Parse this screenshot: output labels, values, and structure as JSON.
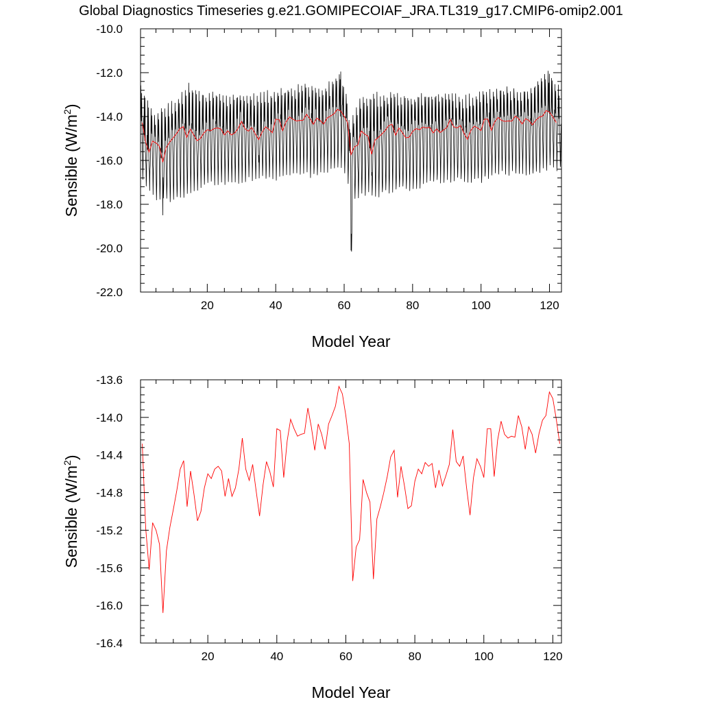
{
  "title": "Global Diagnostics Timeseries g.e21.GOMIPECOIAF_JRA.TL319_g17.CMIP6-omip2.001",
  "colors": {
    "monthly": "#000000",
    "annual": "#ff0000"
  },
  "chart_data": [
    {
      "type": "line",
      "xlabel": "Model Year",
      "ylabel_main": "Sensible (W/m",
      "ylabel_sup": "2",
      "ylabel_tail": ")",
      "xlim": [
        0.5,
        123.5
      ],
      "ylim": [
        -22.0,
        -10.0
      ],
      "xticks": [
        20,
        40,
        60,
        80,
        100,
        120
      ],
      "yticks": [
        -22.0,
        -20.0,
        -18.0,
        -16.0,
        -14.0,
        -12.0,
        -10.0
      ],
      "ytick_labels": [
        "-22.0",
        "-20.0",
        "-18.0",
        "-16.0",
        "-14.0",
        "-12.0",
        "-10.0"
      ],
      "monthly_envelope": {
        "years": [
          1,
          5,
          10,
          15,
          20,
          25,
          30,
          35,
          40,
          45,
          50,
          55,
          59,
          61,
          62,
          63,
          65,
          70,
          75,
          80,
          85,
          90,
          95,
          100,
          105,
          110,
          115,
          120,
          123
        ],
        "max": [
          -12.6,
          -13.9,
          -13.4,
          -12.6,
          -13.0,
          -13.0,
          -13.0,
          -13.0,
          -12.9,
          -12.7,
          -12.6,
          -12.7,
          -12.0,
          -13.0,
          -14.5,
          -14.0,
          -13.3,
          -13.0,
          -13.0,
          -13.1,
          -13.0,
          -13.0,
          -13.1,
          -13.0,
          -12.7,
          -12.8,
          -12.7,
          -12.0,
          -12.6
        ],
        "min": [
          -16.9,
          -17.7,
          -17.8,
          -17.5,
          -17.0,
          -17.1,
          -16.9,
          -16.8,
          -16.8,
          -16.5,
          -16.7,
          -16.5,
          -16.4,
          -17.0,
          -20.1,
          -17.8,
          -17.5,
          -17.6,
          -17.3,
          -17.3,
          -17.0,
          -16.9,
          -16.9,
          -16.9,
          -16.6,
          -16.6,
          -16.7,
          -16.3,
          -16.4
        ],
        "spikes": [
          {
            "year": 62,
            "value": -20.1
          },
          {
            "year": 7,
            "value": -18.5
          },
          {
            "year": 59,
            "value": -11.95
          },
          {
            "year": 120,
            "value": -12.05
          }
        ]
      },
      "annual": "series"
    },
    {
      "type": "line",
      "xlabel": "Model Year",
      "ylabel_main": "Sensible (W/m",
      "ylabel_sup": "2",
      "ylabel_tail": ")",
      "xlim": [
        0.5,
        122.5
      ],
      "ylim": [
        -16.4,
        -13.6
      ],
      "xticks": [
        20,
        40,
        60,
        80,
        100,
        120
      ],
      "yticks": [
        -16.4,
        -16.0,
        -15.6,
        -15.2,
        -14.8,
        -14.4,
        -14.0,
        -13.6
      ],
      "ytick_labels": [
        "-16.4",
        "-16.0",
        "-15.6",
        "-15.2",
        "-14.8",
        "-14.4",
        "-14.0",
        "-13.6"
      ],
      "annual": "series"
    }
  ],
  "annual_series": {
    "x": [
      1,
      2,
      3,
      4,
      5,
      6,
      7,
      8,
      9,
      10,
      11,
      12,
      13,
      14,
      15,
      16,
      17,
      18,
      19,
      20,
      21,
      22,
      23,
      24,
      25,
      26,
      27,
      28,
      29,
      30,
      31,
      32,
      33,
      34,
      35,
      36,
      37,
      38,
      39,
      40,
      41,
      42,
      43,
      44,
      45,
      46,
      47,
      48,
      49,
      50,
      51,
      52,
      53,
      54,
      55,
      56,
      57,
      58,
      59,
      60,
      61,
      62,
      63,
      64,
      65,
      66,
      67,
      68,
      69,
      70,
      71,
      72,
      73,
      74,
      75,
      76,
      77,
      78,
      79,
      80,
      81,
      82,
      83,
      84,
      85,
      86,
      87,
      88,
      89,
      90,
      91,
      92,
      93,
      94,
      95,
      96,
      97,
      98,
      99,
      100,
      101,
      102,
      103,
      104,
      105,
      106,
      107,
      108,
      109,
      110,
      111,
      112,
      113,
      114,
      115,
      116,
      117,
      118,
      119,
      120,
      121,
      122
    ],
    "y": [
      -14.28,
      -15.18,
      -15.62,
      -15.12,
      -15.2,
      -15.35,
      -16.08,
      -15.42,
      -15.17,
      -14.98,
      -14.78,
      -14.55,
      -14.46,
      -14.95,
      -14.57,
      -14.82,
      -15.1,
      -15.0,
      -14.75,
      -14.6,
      -14.65,
      -14.55,
      -14.52,
      -14.57,
      -14.84,
      -14.65,
      -14.84,
      -14.75,
      -14.55,
      -14.22,
      -14.55,
      -14.67,
      -14.5,
      -14.78,
      -15.05,
      -14.72,
      -14.47,
      -14.58,
      -14.74,
      -14.12,
      -14.14,
      -14.64,
      -14.25,
      -14.02,
      -14.12,
      -14.2,
      -14.18,
      -14.17,
      -13.9,
      -14.1,
      -14.35,
      -14.07,
      -14.18,
      -14.34,
      -14.07,
      -13.98,
      -13.88,
      -13.67,
      -13.75,
      -13.98,
      -14.28,
      -15.74,
      -15.38,
      -15.3,
      -14.66,
      -14.8,
      -14.9,
      -15.72,
      -15.08,
      -14.95,
      -14.8,
      -14.63,
      -14.42,
      -14.35,
      -14.85,
      -14.52,
      -14.73,
      -14.97,
      -14.94,
      -14.68,
      -14.55,
      -14.6,
      -14.48,
      -14.52,
      -14.49,
      -14.75,
      -14.56,
      -14.73,
      -14.62,
      -14.5,
      -14.13,
      -14.47,
      -14.52,
      -14.41,
      -14.75,
      -15.04,
      -14.64,
      -14.44,
      -14.52,
      -14.64,
      -14.12,
      -14.12,
      -14.63,
      -14.24,
      -14.04,
      -14.18,
      -14.22,
      -14.2,
      -14.21,
      -13.98,
      -14.1,
      -14.34,
      -14.1,
      -14.18,
      -14.38,
      -14.17,
      -14.03,
      -13.98,
      -13.73,
      -13.8,
      -14.02,
      -14.28
    ]
  }
}
